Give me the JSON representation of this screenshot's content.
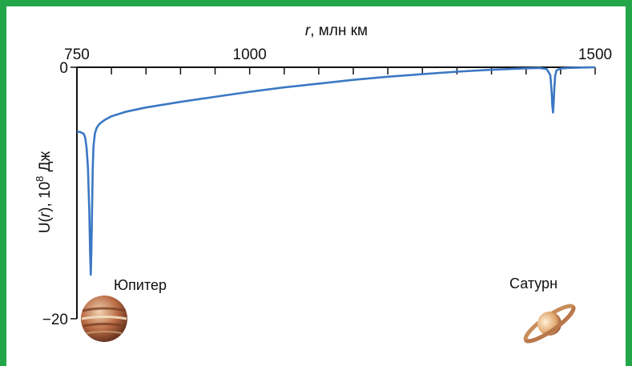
{
  "chart_data": {
    "type": "line",
    "xlabel_italic": "r",
    "xlabel_rest": ", млн км",
    "ylabel_prefix": "U(",
    "ylabel_var": "r",
    "ylabel_mid": "), 10",
    "ylabel_exp": "8",
    "ylabel_unit": " Дж",
    "xlim": [
      750,
      1500
    ],
    "ylim": [
      -20,
      0
    ],
    "x_ticks": [
      750,
      1000,
      1500
    ],
    "y_ticks": [
      0,
      -20
    ],
    "x_tick_labels": [
      "750",
      "1000",
      "1500"
    ],
    "y_tick_labels": [
      "0",
      "−20"
    ],
    "series": [
      {
        "x": [
          750,
          755,
          760,
          762,
          764,
          766,
          768,
          769,
          770,
          771,
          772,
          773,
          774,
          776,
          778,
          780,
          782,
          785,
          790,
          800,
          820,
          850,
          900,
          950,
          1000,
          1050,
          1100,
          1150,
          1200,
          1250,
          1300,
          1350,
          1400,
          1420,
          1430,
          1435,
          1436,
          1437,
          1438,
          1439,
          1440,
          1441,
          1442,
          1444,
          1450,
          1460,
          1480,
          1500
        ],
        "y": [
          -5.1,
          -5.15,
          -5.3,
          -5.6,
          -6.4,
          -8.0,
          -11.5,
          -14.5,
          -16.5,
          -14.5,
          -11.0,
          -8.0,
          -6.3,
          -5.3,
          -4.9,
          -4.7,
          -4.55,
          -4.4,
          -4.2,
          -3.9,
          -3.55,
          -3.2,
          -2.75,
          -2.35,
          -1.95,
          -1.6,
          -1.3,
          -1.0,
          -0.75,
          -0.55,
          -0.35,
          -0.2,
          -0.08,
          -0.05,
          -0.15,
          -0.6,
          -1.2,
          -2.0,
          -3.0,
          -3.6,
          -2.8,
          -1.6,
          -0.7,
          -0.25,
          -0.1,
          -0.05,
          -0.02,
          0
        ]
      }
    ],
    "colors": {
      "line": "#3b78c4",
      "frame": "#23a64a",
      "axis": "#111111"
    },
    "annotations": [
      "Юпитер",
      "Сатурн"
    ]
  }
}
